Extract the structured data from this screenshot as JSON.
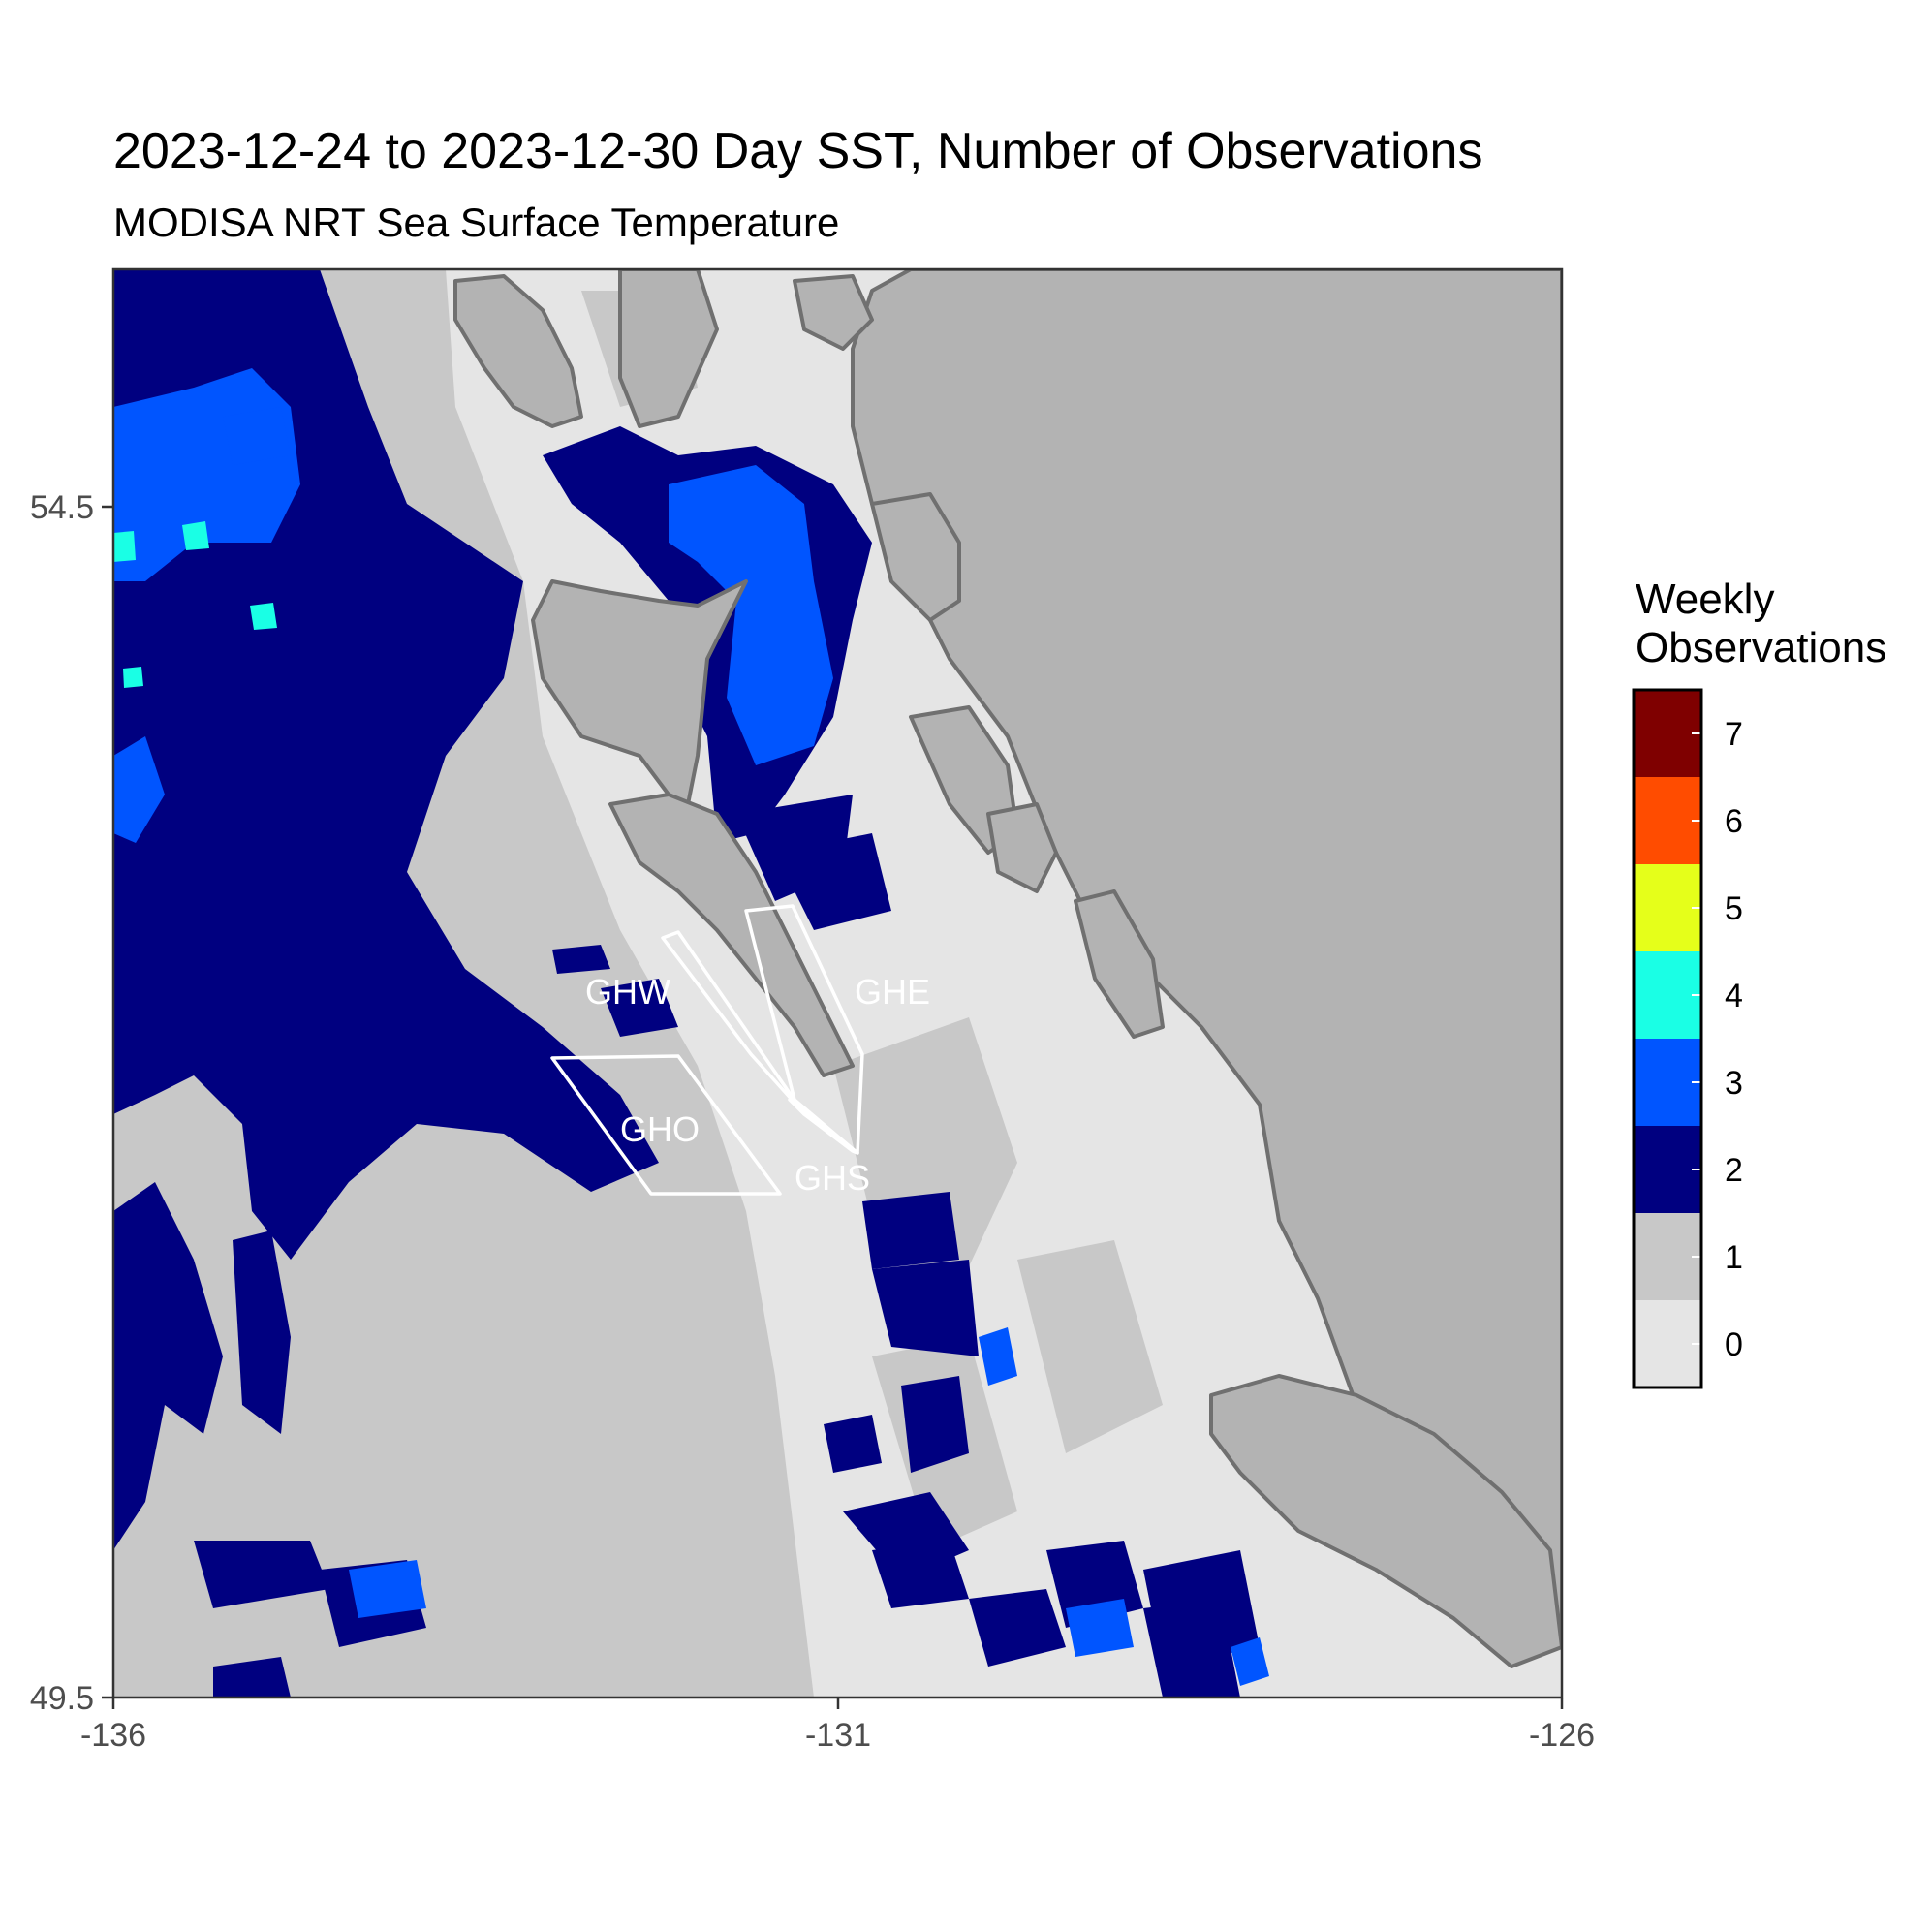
{
  "title": "2023-12-24 to 2023-12-30 Day SST, Number of Observations",
  "subtitle": "MODISA NRT Sea Surface Temperature",
  "colors": {
    "background": "#ffffff",
    "land": "#b3b3b3",
    "land_border": "#707070",
    "zone_outline": "#ffffff",
    "panel_border": "#333333"
  },
  "map": {
    "x_ticks": [
      "-136",
      "-131",
      "-126"
    ],
    "y_ticks": [
      "54.5",
      "49.5"
    ],
    "x_range": [
      -136,
      -126
    ],
    "y_range": [
      49.5,
      54.5
    ]
  },
  "zones": [
    {
      "label": "GHW"
    },
    {
      "label": "GHE"
    },
    {
      "label": "GHO"
    },
    {
      "label": "GHS"
    }
  ],
  "legend": {
    "title_line1": "Weekly",
    "title_line2": "Observations",
    "entries": [
      {
        "label": "7",
        "color": "#7f0000"
      },
      {
        "label": "6",
        "color": "#ff4c00"
      },
      {
        "label": "5",
        "color": "#e5ff1a"
      },
      {
        "label": "4",
        "color": "#1affe5"
      },
      {
        "label": "3",
        "color": "#0055ff"
      },
      {
        "label": "2",
        "color": "#000080"
      },
      {
        "label": "1",
        "color": "#c8c8c8"
      },
      {
        "label": "0",
        "color": "#e5e5e5"
      }
    ]
  }
}
